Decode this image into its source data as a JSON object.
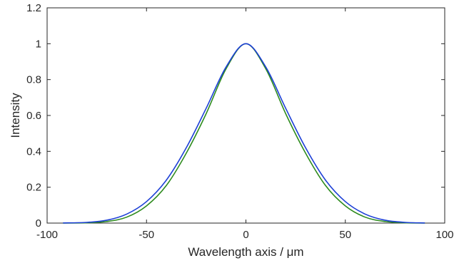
{
  "chart_data": {
    "type": "line",
    "xlabel": "Wavelength axis  /   μm",
    "ylabel": "Intensity",
    "xlim": [
      -100,
      100
    ],
    "ylim": [
      0,
      1.2
    ],
    "xticks": [
      -100,
      -50,
      0,
      50,
      100
    ],
    "xtick_labels": [
      "-100",
      "-50",
      "0",
      "50",
      "100"
    ],
    "yticks": [
      0,
      0.2,
      0.4,
      0.6,
      0.8,
      1,
      1.2
    ],
    "ytick_labels": [
      "0",
      "0.2",
      "0.4",
      "0.6",
      "0.8",
      "1",
      "1.2"
    ],
    "grid": false,
    "series": [
      {
        "color": "#2e8b1e",
        "x": [
          -92,
          -80,
          -70,
          -60,
          -50,
          -40,
          -30,
          -20,
          -10,
          0,
          10,
          20,
          30,
          40,
          50,
          60,
          70,
          80,
          90
        ],
        "y": [
          0.0003,
          0.0016,
          0.009,
          0.033,
          0.096,
          0.21,
          0.39,
          0.61,
          0.86,
          1.0,
          0.86,
          0.61,
          0.39,
          0.21,
          0.096,
          0.033,
          0.009,
          0.0016,
          0.0003
        ]
      },
      {
        "color": "#1c3fd6",
        "x": [
          -92,
          -80,
          -70,
          -60,
          -50,
          -40,
          -30,
          -20,
          -10,
          0,
          10,
          20,
          30,
          40,
          50,
          60,
          70,
          80,
          90
        ],
        "y": [
          0.0008,
          0.004,
          0.016,
          0.05,
          0.12,
          0.24,
          0.42,
          0.64,
          0.87,
          1.0,
          0.87,
          0.64,
          0.42,
          0.24,
          0.12,
          0.05,
          0.016,
          0.004,
          0.0008
        ]
      }
    ]
  }
}
